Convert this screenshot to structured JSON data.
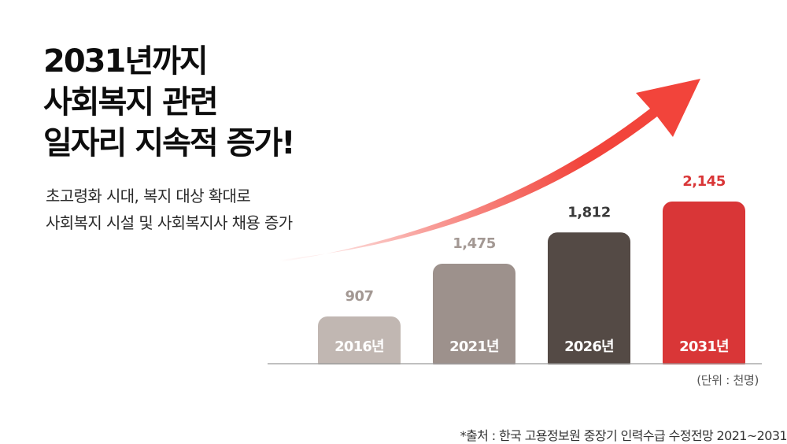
{
  "title_lines": [
    "2031년까지",
    "사회복지 관련",
    "일자리 지속적 증가!"
  ],
  "subtitle_lines": [
    "초고령화 시대, 복지 대상 확대로",
    "사회복지 시설 및 사회복지사 채용 증가"
  ],
  "unit_label": "(단위 : 천명)",
  "source": "*출처 : 한국 고용정보원 중장기 인력수급 수정전망 2021~2031",
  "chart_data": {
    "type": "bar",
    "categories": [
      "2016년",
      "2021년",
      "2026년",
      "2031년"
    ],
    "values": [
      907,
      1475,
      1812,
      2145
    ],
    "value_labels": [
      "907",
      "1,475",
      "1,812",
      "2,145"
    ],
    "bar_colors": [
      "#c1b7b2",
      "#9d918c",
      "#544a45",
      "#d93637"
    ],
    "value_label_colors": [
      "#a39893",
      "#a39893",
      "#3a3a3a",
      "#d93637"
    ],
    "trend_arrow_color": "#f2443b"
  }
}
